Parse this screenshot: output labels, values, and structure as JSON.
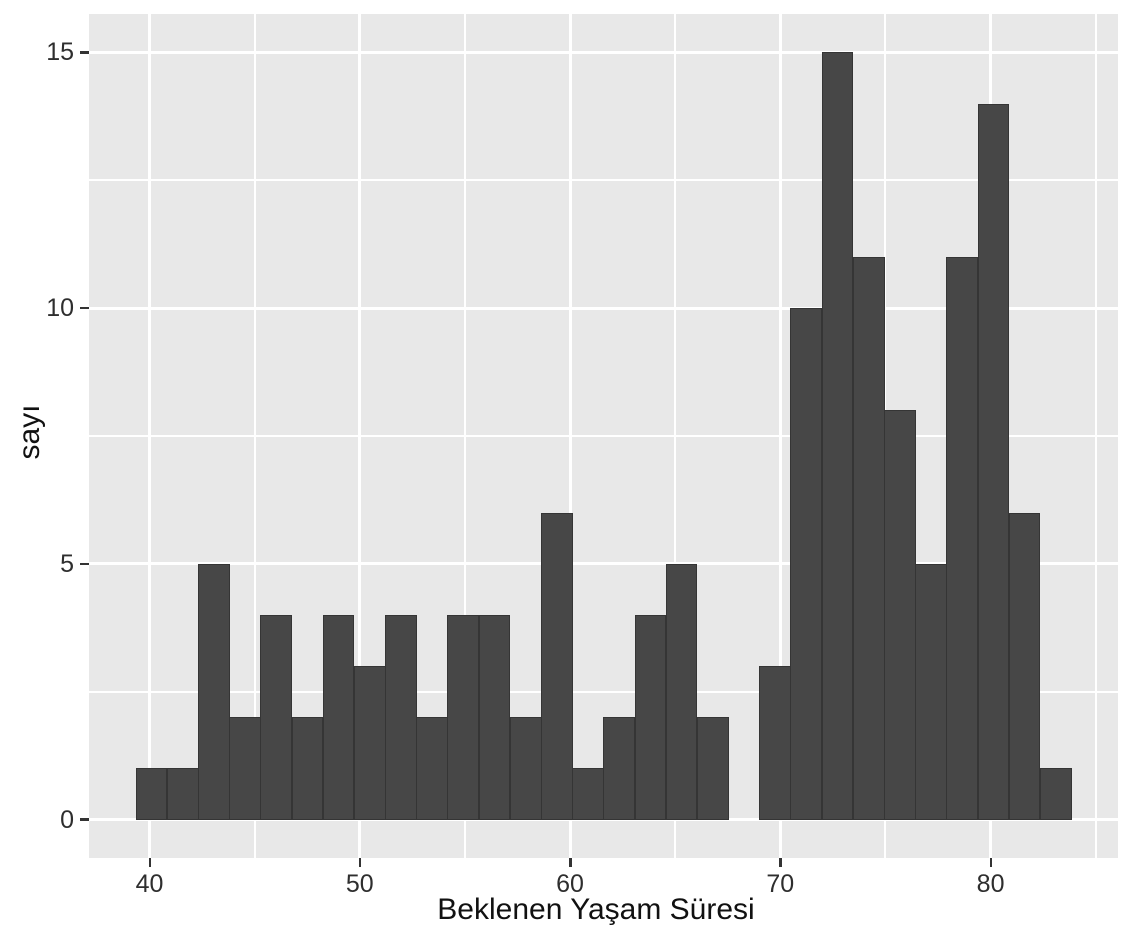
{
  "chart_data": {
    "type": "bar",
    "subtype": "histogram",
    "title": "",
    "xlabel": "Beklenen Yaşam Süresi",
    "ylabel": "sayı",
    "bin_start": 39.34,
    "bin_width": 1.483,
    "counts": [
      1,
      1,
      5,
      2,
      4,
      2,
      4,
      3,
      4,
      2,
      4,
      4,
      2,
      6,
      1,
      2,
      4,
      5,
      2,
      0,
      3,
      10,
      15,
      11,
      8,
      5,
      11,
      14,
      6,
      1
    ],
    "total_count": 142,
    "x_ticks": [
      40,
      50,
      60,
      70,
      80
    ],
    "x_minor_ticks": [
      45,
      55,
      65,
      75,
      85
    ],
    "y_ticks": [
      0,
      5,
      10,
      15
    ],
    "y_minor_ticks": [
      2.5,
      7.5,
      12.5
    ],
    "x_domain": [
      37.12,
      86.06
    ],
    "y_domain": [
      -0.75,
      15.75
    ],
    "grid": true,
    "legend_position": "none",
    "colors": {
      "bar_fill": "#474747",
      "bar_edge": "rgba(0,0,0,0.25)",
      "panel_background": "#E8E8E8",
      "grid_major": "#FFFFFF",
      "grid_minor": "#FFFFFF",
      "tick_mark": "#333333",
      "tick_text": "#2e2e2e",
      "axis_title_text": "#111111",
      "figure_background": "#FFFFFF"
    }
  }
}
